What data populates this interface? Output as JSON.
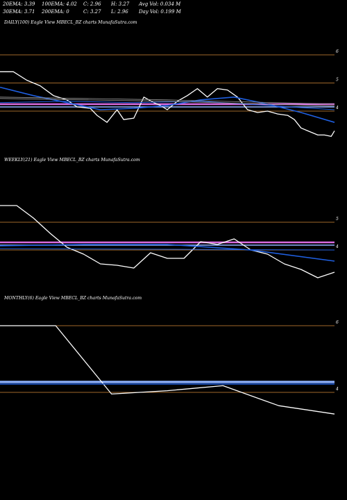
{
  "header": {
    "row1": [
      "20EMA: 3.39",
      "100EMA: 4.02",
      "C: 2.96",
      "H: 3.27",
      "Avg Vol: 0.034  M"
    ],
    "row2": [
      "30EMA: 3.71",
      "200EMA: 0",
      "C: 3.27",
      "L: 2.96",
      "Day Vol: 0.199 M"
    ]
  },
  "colors": {
    "background": "#000000",
    "price": "#ffffff",
    "ema_blue": "#1f5fe0",
    "band_magenta": "#d96be0",
    "band_light_blue": "#8fb3ff",
    "level_orange": "#a0672a",
    "ma_gray": "#9a9a9a"
  },
  "chart_data": [
    {
      "type": "line",
      "title": "DAILY(100) Eagle   View  MBECL_BZ charts MunafaSutra.com",
      "y_ticks": [
        "6",
        "5",
        "4"
      ],
      "level_lines": [
        6,
        5,
        4
      ],
      "ylim": [
        2.6,
        6.6
      ],
      "series": [
        {
          "key": "price",
          "x": [
            0,
            4,
            8,
            12,
            16,
            20,
            23,
            27,
            29,
            32,
            35,
            37,
            40,
            43,
            46,
            48,
            50,
            53,
            56,
            59,
            62,
            65,
            68,
            71,
            74,
            77,
            80,
            83,
            86,
            88,
            90,
            92,
            94,
            95,
            97,
            99,
            100
          ],
          "y": [
            5.4,
            5.4,
            5.1,
            4.9,
            4.55,
            4.4,
            4.15,
            4.1,
            3.85,
            3.6,
            4.05,
            3.7,
            3.75,
            4.5,
            4.3,
            4.2,
            4.05,
            4.35,
            4.55,
            4.8,
            4.5,
            4.8,
            4.75,
            4.5,
            4.05,
            3.95,
            4.0,
            3.9,
            3.85,
            3.7,
            3.4,
            3.3,
            3.2,
            3.15,
            3.15,
            3.1,
            3.3
          ]
        },
        {
          "key": "ema20",
          "x": [
            0,
            10,
            20,
            30,
            40,
            50,
            60,
            70,
            80,
            90,
            100
          ],
          "y": [
            4.85,
            4.55,
            4.3,
            4.05,
            4.1,
            4.2,
            4.4,
            4.5,
            4.25,
            3.95,
            3.6
          ]
        },
        {
          "key": "ema30",
          "x": [
            0,
            20,
            40,
            60,
            80,
            100
          ],
          "y": [
            4.3,
            4.35,
            4.3,
            4.35,
            4.2,
            4.05
          ]
        },
        {
          "key": "ema100",
          "x": [
            0,
            50,
            100
          ],
          "y": [
            4.5,
            4.4,
            4.25
          ]
        },
        {
          "key": "ema100b",
          "x": [
            0,
            50,
            100
          ],
          "y": [
            4.45,
            4.35,
            4.18
          ]
        }
      ]
    },
    {
      "type": "line",
      "title": "WEEKLY(21) Eagle   View  MBECL_BZ charts MunafaSutra.com",
      "y_ticks": [
        "5",
        "4"
      ],
      "level_lines": [
        5,
        4
      ],
      "ylim": [
        2.6,
        6.6
      ],
      "series": [
        {
          "key": "price",
          "x": [
            0,
            1,
            2,
            3,
            4,
            5,
            6,
            7,
            8,
            9,
            10,
            11,
            12,
            13,
            14,
            15,
            16,
            17,
            18,
            19,
            20
          ],
          "y": [
            5.6,
            5.6,
            5.15,
            4.6,
            4.1,
            3.85,
            3.5,
            3.45,
            3.35,
            3.9,
            3.7,
            3.7,
            4.3,
            4.2,
            4.4,
            4.0,
            3.85,
            3.5,
            3.3,
            3.0,
            3.2
          ]
        },
        {
          "key": "ema20",
          "x": [
            0,
            5,
            10,
            15,
            20
          ],
          "y": [
            4.15,
            4.2,
            4.2,
            4.0,
            3.6
          ]
        },
        {
          "key": "ema30",
          "x": [
            0,
            20
          ],
          "y": [
            4.05,
            4.0
          ]
        }
      ]
    },
    {
      "type": "line",
      "title": "MONTHLY(6) Eagle   View  MBECL_BZ charts MunafaSutra.com",
      "y_ticks": [
        "6",
        "4"
      ],
      "level_lines": [
        6,
        4
      ],
      "ylim": [
        2.6,
        6.6
      ],
      "series": [
        {
          "key": "price",
          "x": [
            0,
            1,
            2,
            3,
            4,
            5,
            6
          ],
          "y": [
            6.0,
            6.0,
            3.95,
            4.05,
            4.2,
            3.6,
            3.35
          ]
        },
        {
          "key": "ema20",
          "x": [
            0,
            6
          ],
          "y": [
            4.25,
            4.25
          ]
        }
      ]
    }
  ]
}
